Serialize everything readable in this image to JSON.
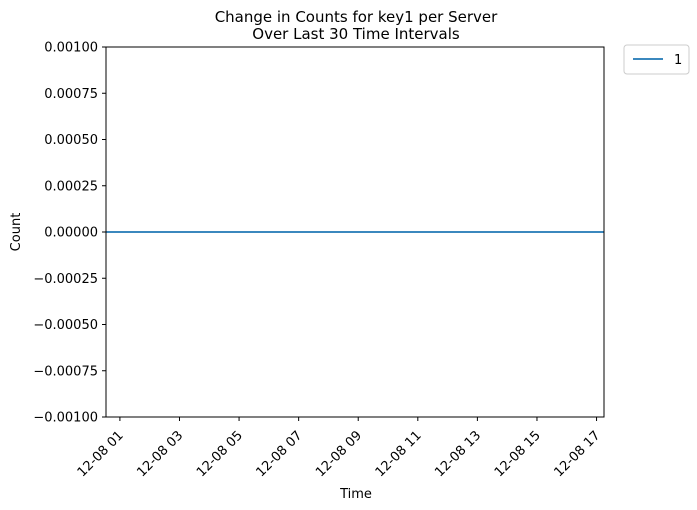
{
  "chart_data": {
    "type": "line",
    "title": [
      "Change in Counts for key1 per Server",
      "Over Last 30 Time Intervals"
    ],
    "xlabel": "Time",
    "ylabel": "Count",
    "x_tick_labels": [
      "12-08 01",
      "12-08 03",
      "12-08 05",
      "12-08 07",
      "12-08 09",
      "12-08 11",
      "12-08 13",
      "12-08 15",
      "12-08 17"
    ],
    "y_tick_labels": [
      "0.00100",
      "0.00075",
      "0.00050",
      "0.00025",
      "0.00000",
      "−0.00025",
      "−0.00050",
      "−0.00075",
      "−0.00100"
    ],
    "ylim": [
      -0.001,
      0.001
    ],
    "xlim": [
      "12-08 00:32",
      "12-08 17:15"
    ],
    "grid": false,
    "legend_placement": "outside-top-right",
    "series": [
      {
        "name": "1",
        "color": "#1f77b4",
        "x": [
          "12-08 00:32",
          "12-08 17:15"
        ],
        "y": [
          0,
          0
        ]
      }
    ]
  }
}
